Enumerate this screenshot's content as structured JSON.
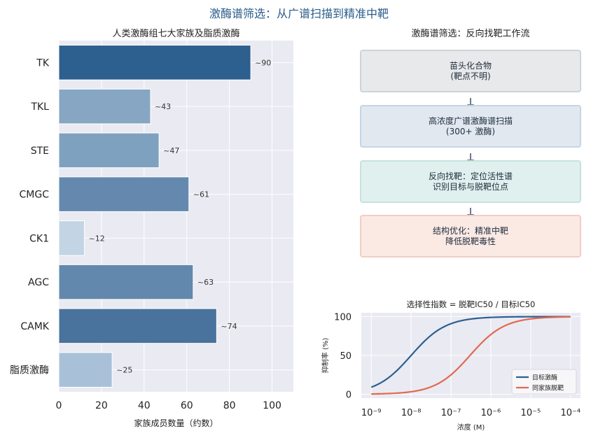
{
  "suptitle": "激酶谱筛选：从广谱扫描到精准中靶",
  "left_title": "人类激酶组七大家族及脂质激酶",
  "flow_title": "激酶谱筛选：反向找靶工作流",
  "flow_steps": [
    {
      "line1": "苗头化合物",
      "line2": "(靶点不明)",
      "fill": "#e8e9eb",
      "border": "#d0d3d8"
    },
    {
      "line1": "高浓度广谱激酶谱扫描",
      "line2": "(300+ 激酶)",
      "fill": "#e1e8f0",
      "border": "#c6d5e4"
    },
    {
      "line1": "反向找靶：定位活性谱",
      "line2": "识别目标与脱靶位点",
      "fill": "#e0f0ee",
      "border": "#c6e2dd"
    },
    {
      "line1": "结构优化：精准中靶",
      "line2": "降低脱靶毒性",
      "fill": "#fbe9e4",
      "border": "#f3cdc3"
    }
  ],
  "chart_data": [
    {
      "type": "bar",
      "orientation": "horizontal",
      "title": "人类激酶组七大家族及脂质激酶",
      "categories": [
        "TK",
        "TKL",
        "STE",
        "CMGC",
        "CK1",
        "AGC",
        "CAMK",
        "脂质激酶"
      ],
      "values": [
        90,
        43,
        47,
        61,
        12,
        63,
        74,
        25
      ],
      "data_labels": [
        "~90",
        "~43",
        "~47",
        "~61",
        "~12",
        "~63",
        "~74",
        "~25"
      ],
      "colors": [
        "#2d5f8f",
        "#86a6c3",
        "#7fa1c0",
        "#6589ae",
        "#c3d4e5",
        "#6388ad",
        "#49739c",
        "#a9c1d8"
      ],
      "xlabel": "家族成员数量（约数）",
      "xlim": [
        0,
        110
      ],
      "xticks": [
        0,
        20,
        40,
        60,
        80,
        100
      ],
      "grid": true
    },
    {
      "type": "line",
      "title": "选择性指数 = 脱靶IC50 / 目标IC50",
      "xlabel": "浓度 (M)",
      "ylabel": "抑制率 (%)",
      "xscale": "log",
      "xlim": [
        1e-09,
        0.0001
      ],
      "ylim": [
        -5,
        105
      ],
      "xtick_labels": [
        "10⁻⁹",
        "10⁻⁸",
        "10⁻⁷",
        "10⁻⁶",
        "10⁻⁵",
        "10⁻⁴"
      ],
      "yticks": [
        0,
        50,
        100
      ],
      "legend_position": "lower-right",
      "grid": true,
      "series": [
        {
          "name": "目标激酶",
          "color": "#2d5f8f",
          "ic50": 1e-08,
          "hill": 1.0
        },
        {
          "name": "同家族脱靶",
          "color": "#e06a50",
          "ic50": 3e-07,
          "hill": 1.0
        }
      ]
    }
  ]
}
